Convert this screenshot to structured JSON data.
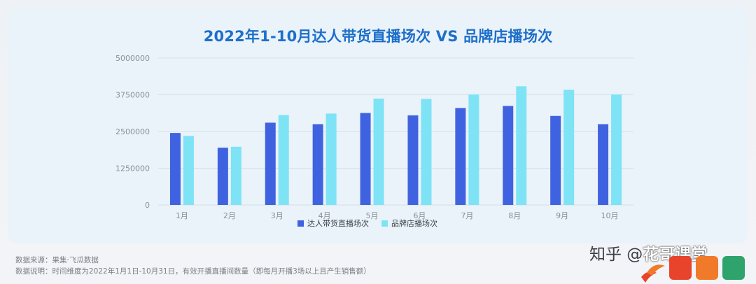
{
  "chart_data": {
    "type": "bar",
    "title": "2022年1-10月达人带货直播场次 VS 品牌店播场次",
    "categories": [
      "1月",
      "2月",
      "3月",
      "4月",
      "5月",
      "6月",
      "7月",
      "8月",
      "9月",
      "10月"
    ],
    "series": [
      {
        "name": "达人带货直播场次",
        "color": "#3f63e0",
        "values": [
          2450000,
          1950000,
          2800000,
          2750000,
          3130000,
          3050000,
          3300000,
          3370000,
          3030000,
          2750000
        ]
      },
      {
        "name": "品牌店播场次",
        "color": "#7ee3f5",
        "values": [
          2350000,
          1980000,
          3060000,
          3110000,
          3620000,
          3610000,
          3760000,
          4040000,
          3920000,
          3760000
        ]
      }
    ],
    "yticks": [
      "0",
      "1250000",
      "2500000",
      "3750000",
      "5000000"
    ],
    "ylim": [
      0,
      5000000
    ],
    "grid": true,
    "legend_position": "bottom-center"
  },
  "footer": {
    "source": "数据来源：果集·飞瓜数据",
    "note": "数据说明：时间维度为2022年1月1日-10月31日，有效开播直播间数量（即每月开播3场以上且产生销售额）"
  },
  "watermark": {
    "text": "知乎 @",
    "brand": "花哥课堂"
  },
  "colors": {
    "title": "#1d6fc9",
    "card_background": "#eaf3fa",
    "grid": "#d6dee6",
    "axis_text": "#8a8f96"
  }
}
